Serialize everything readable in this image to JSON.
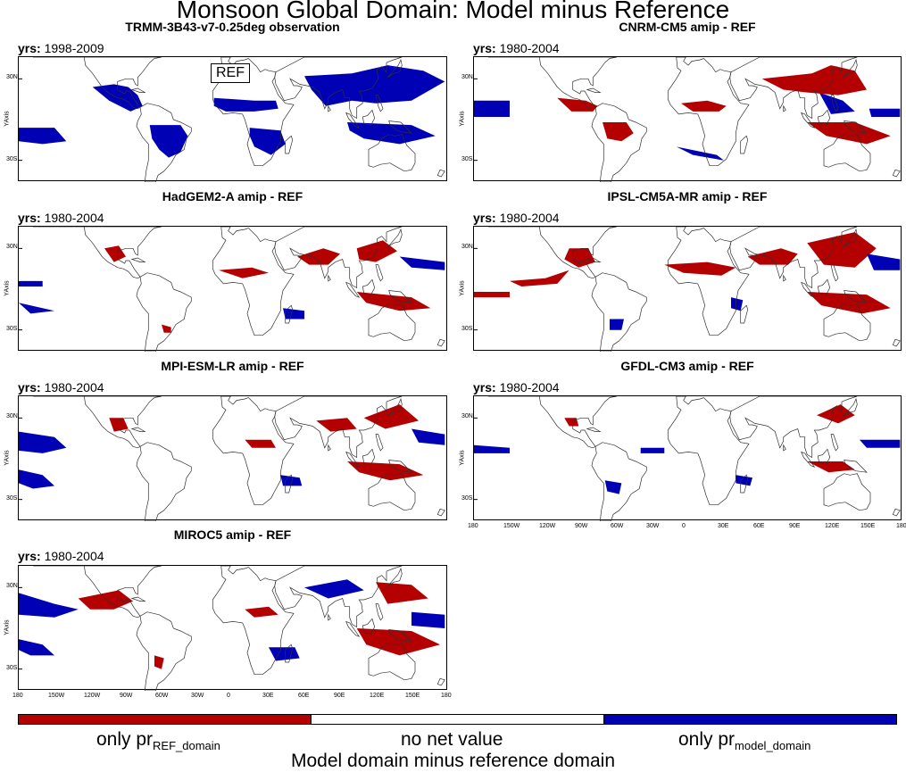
{
  "figure": {
    "title": "Monsoon Global Domain: Model minus Reference",
    "colors": {
      "model_only": "#0000b4",
      "ref_only": "#b40000",
      "none": "#ffffff",
      "coast": "#303030"
    }
  },
  "panels": [
    {
      "title": "TRMM-3B43-v7-0.25deg observation",
      "yrs_label": "yrs:",
      "yrs_value": "1998-2009",
      "ref_label": "REF"
    },
    {
      "title": "CNRM-CM5 amip - REF",
      "yrs_label": "yrs:",
      "yrs_value": "1980-2004"
    },
    {
      "title": "HadGEM2-A amip - REF",
      "yrs_label": "yrs:",
      "yrs_value": "1980-2004"
    },
    {
      "title": "IPSL-CM5A-MR amip - REF",
      "yrs_label": "yrs:",
      "yrs_value": "1980-2004"
    },
    {
      "title": "MPI-ESM-LR amip - REF",
      "yrs_label": "yrs:",
      "yrs_value": "1980-2004"
    },
    {
      "title": "GFDL-CM3 amip - REF",
      "yrs_label": "yrs:",
      "yrs_value": "1980-2004"
    },
    {
      "title": "MIROC5 amip - REF",
      "yrs_label": "yrs:",
      "yrs_value": "1980-2004"
    }
  ],
  "axes": {
    "y_label": "YAxis",
    "lat_ticks": [
      "30N",
      "30S"
    ],
    "lon_ticks": [
      "180",
      "150W",
      "120W",
      "90W",
      "60W",
      "30W",
      "0",
      "30E",
      "60E",
      "90E",
      "120E",
      "150E",
      "180"
    ]
  },
  "colorbar": {
    "labels": [
      {
        "main": "only pr",
        "sub": "REF_domain"
      },
      {
        "main": "no net value",
        "sub": ""
      },
      {
        "main": "only pr",
        "sub": "model_domain"
      }
    ],
    "title": "Model domain minus reference domain"
  }
}
